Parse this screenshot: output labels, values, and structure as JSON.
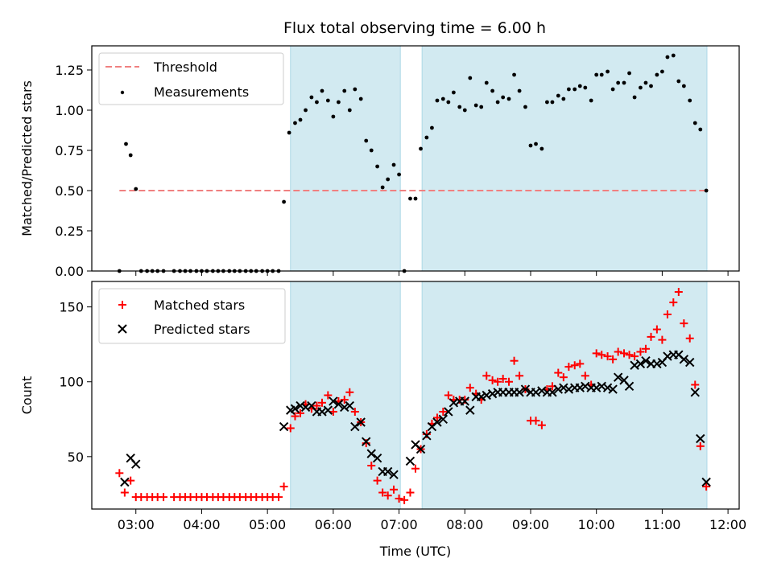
{
  "chart_data": {
    "title": "Flux total observing time = 6.00 h",
    "xlabel": "Time (UTC)",
    "x_unit": "hours UTC",
    "xlim": [
      2.33,
      12.17
    ],
    "x_ticks": [
      {
        "value": 3,
        "label": "03:00"
      },
      {
        "value": 4,
        "label": "04:00"
      },
      {
        "value": 5,
        "label": "05:00"
      },
      {
        "value": 6,
        "label": "06:00"
      },
      {
        "value": 7,
        "label": "07:00"
      },
      {
        "value": 8,
        "label": "08:00"
      },
      {
        "value": 9,
        "label": "09:00"
      },
      {
        "value": 10,
        "label": "10:00"
      },
      {
        "value": 11,
        "label": "11:00"
      },
      {
        "value": 12,
        "label": "12:00"
      }
    ],
    "shaded_spans": [
      {
        "start": 5.35,
        "end": 7.02,
        "color": "#add8e6"
      },
      {
        "start": 7.35,
        "end": 11.68,
        "color": "#add8e6"
      }
    ],
    "top": {
      "type": "scatter",
      "ylabel": "Matched/Predicted stars",
      "ylim": [
        0,
        1.4
      ],
      "y_ticks": [
        "0.00",
        "0.25",
        "0.50",
        "0.75",
        "1.00",
        "1.25"
      ],
      "legend": "top-left",
      "threshold": {
        "name": "Threshold",
        "value": 0.5,
        "x_range": [
          2.75,
          11.68
        ],
        "color": "#f08080"
      },
      "measurements": {
        "name": "Measurements",
        "color": "#000000",
        "x": [
          2.75,
          2.85,
          2.92,
          3.0,
          3.08,
          3.17,
          3.25,
          3.33,
          3.42,
          3.58,
          3.67,
          3.75,
          3.83,
          3.92,
          4.0,
          4.08,
          4.17,
          4.25,
          4.33,
          4.42,
          4.5,
          4.58,
          4.67,
          4.75,
          4.83,
          4.92,
          5.0,
          5.08,
          5.17,
          5.25,
          5.33,
          5.42,
          5.5,
          5.58,
          5.67,
          5.75,
          5.83,
          5.92,
          6.0,
          6.08,
          6.17,
          6.25,
          6.33,
          6.42,
          6.5,
          6.58,
          6.67,
          6.75,
          6.83,
          6.92,
          7.0,
          7.08,
          7.17,
          7.25,
          7.33,
          7.42,
          7.5,
          7.58,
          7.67,
          7.75,
          7.83,
          7.92,
          8.0,
          8.08,
          8.17,
          8.25,
          8.33,
          8.42,
          8.5,
          8.58,
          8.67,
          8.75,
          8.83,
          8.92,
          9.0,
          9.08,
          9.17,
          9.25,
          9.33,
          9.42,
          9.5,
          9.58,
          9.67,
          9.75,
          9.83,
          9.92,
          10.0,
          10.08,
          10.17,
          10.25,
          10.33,
          10.42,
          10.5,
          10.58,
          10.67,
          10.75,
          10.83,
          10.92,
          11.0,
          11.08,
          11.17,
          11.25,
          11.33,
          11.42,
          11.5,
          11.58,
          11.67
        ],
        "y": [
          0.0,
          0.79,
          0.72,
          0.51,
          0.0,
          0.0,
          0.0,
          0.0,
          0.0,
          0.0,
          0.0,
          0.0,
          0.0,
          0.0,
          0.0,
          0.0,
          0.0,
          0.0,
          0.0,
          0.0,
          0.0,
          0.0,
          0.0,
          0.0,
          0.0,
          0.0,
          0.0,
          0.0,
          0.0,
          0.43,
          0.86,
          0.92,
          0.94,
          1.0,
          1.08,
          1.05,
          1.12,
          1.06,
          0.96,
          1.05,
          1.12,
          1.0,
          1.13,
          1.07,
          0.81,
          0.75,
          0.65,
          0.52,
          0.57,
          0.66,
          0.6,
          0.0,
          0.45,
          0.45,
          0.76,
          0.83,
          0.89,
          1.06,
          1.07,
          1.05,
          1.11,
          1.02,
          1.0,
          1.2,
          1.03,
          1.02,
          1.17,
          1.12,
          1.05,
          1.08,
          1.07,
          1.22,
          1.12,
          1.02,
          0.78,
          0.79,
          0.76,
          1.05,
          1.05,
          1.09,
          1.07,
          1.13,
          1.13,
          1.15,
          1.14,
          1.06,
          1.22,
          1.22,
          1.24,
          1.13,
          1.17,
          1.17,
          1.23,
          1.08,
          1.14,
          1.17,
          1.15,
          1.22,
          1.24,
          1.33,
          1.34,
          1.18,
          1.15,
          1.06,
          0.92,
          0.88,
          0.5
        ]
      }
    },
    "bottom": {
      "type": "scatter",
      "ylabel": "Count",
      "ylim": [
        15,
        167
      ],
      "y_ticks": [
        50,
        100,
        150
      ],
      "legend": "top-left",
      "series": [
        {
          "name": "Matched stars",
          "marker": "plus",
          "color": "#ff0000",
          "x": [
            2.75,
            2.83,
            2.92,
            3.0,
            3.08,
            3.17,
            3.25,
            3.33,
            3.42,
            3.58,
            3.67,
            3.75,
            3.83,
            3.92,
            4.0,
            4.08,
            4.17,
            4.25,
            4.33,
            4.42,
            4.5,
            4.58,
            4.67,
            4.75,
            4.83,
            4.92,
            5.0,
            5.08,
            5.17,
            5.25,
            5.35,
            5.42,
            5.5,
            5.58,
            5.67,
            5.75,
            5.83,
            5.92,
            6.0,
            6.08,
            6.17,
            6.25,
            6.33,
            6.42,
            6.5,
            6.58,
            6.67,
            6.75,
            6.83,
            6.92,
            7.0,
            7.08,
            7.17,
            7.25,
            7.33,
            7.42,
            7.5,
            7.58,
            7.67,
            7.75,
            7.83,
            7.92,
            8.0,
            8.08,
            8.17,
            8.25,
            8.33,
            8.42,
            8.5,
            8.58,
            8.67,
            8.75,
            8.83,
            8.92,
            9.0,
            9.08,
            9.17,
            9.25,
            9.33,
            9.42,
            9.5,
            9.58,
            9.67,
            9.75,
            9.83,
            9.92,
            10.0,
            10.08,
            10.17,
            10.25,
            10.33,
            10.42,
            10.5,
            10.58,
            10.67,
            10.75,
            10.83,
            10.92,
            11.0,
            11.08,
            11.17,
            11.25,
            11.33,
            11.42,
            11.5,
            11.58,
            11.67
          ],
          "y": [
            39,
            26,
            34,
            23,
            23,
            23,
            23,
            23,
            23,
            23,
            23,
            23,
            23,
            23,
            23,
            23,
            23,
            23,
            23,
            23,
            23,
            23,
            23,
            23,
            23,
            23,
            23,
            23,
            23,
            30,
            69,
            77,
            79,
            85,
            82,
            84,
            86,
            91,
            80,
            87,
            88,
            93,
            80,
            73,
            59,
            44,
            34,
            26,
            24,
            28,
            22,
            21,
            26,
            42,
            55,
            65,
            72,
            76,
            80,
            91,
            88,
            88,
            88,
            96,
            92,
            88,
            104,
            101,
            100,
            102,
            100,
            114,
            104,
            95,
            74,
            74,
            71,
            95,
            97,
            106,
            103,
            110,
            111,
            112,
            104,
            98,
            119,
            118,
            117,
            115,
            120,
            119,
            118,
            117,
            120,
            122,
            130,
            135,
            128,
            145,
            153,
            160,
            139,
            129,
            98,
            57,
            30
          ]
        },
        {
          "name": "Predicted stars",
          "marker": "x",
          "color": "#000000",
          "x": [
            2.83,
            2.92,
            3.0,
            5.25,
            5.35,
            5.42,
            5.5,
            5.58,
            5.67,
            5.75,
            5.83,
            5.92,
            6.0,
            6.08,
            6.17,
            6.25,
            6.33,
            6.42,
            6.5,
            6.58,
            6.67,
            6.75,
            6.83,
            6.92,
            7.17,
            7.25,
            7.33,
            7.42,
            7.5,
            7.58,
            7.67,
            7.75,
            7.83,
            7.92,
            8.0,
            8.08,
            8.17,
            8.25,
            8.33,
            8.42,
            8.5,
            8.58,
            8.67,
            8.75,
            8.83,
            8.92,
            9.0,
            9.08,
            9.17,
            9.25,
            9.33,
            9.42,
            9.5,
            9.58,
            9.67,
            9.75,
            9.83,
            9.92,
            10.0,
            10.08,
            10.17,
            10.25,
            10.33,
            10.42,
            10.5,
            10.58,
            10.67,
            10.75,
            10.83,
            10.92,
            11.0,
            11.08,
            11.17,
            11.25,
            11.33,
            11.42,
            11.5,
            11.58,
            11.67
          ],
          "y": [
            33,
            49,
            45,
            70,
            81,
            82,
            84,
            83,
            84,
            80,
            80,
            81,
            87,
            85,
            83,
            84,
            70,
            73,
            60,
            52,
            49,
            40,
            40,
            38,
            47,
            58,
            55,
            64,
            70,
            73,
            75,
            80,
            86,
            87,
            87,
            81,
            90,
            90,
            91,
            92,
            93,
            93,
            93,
            93,
            93,
            95,
            93,
            93,
            94,
            93,
            93,
            95,
            96,
            95,
            96,
            96,
            97,
            96,
            96,
            97,
            96,
            95,
            103,
            101,
            97,
            111,
            112,
            114,
            112,
            112,
            113,
            117,
            118,
            118,
            115,
            113,
            93,
            62,
            33
          ]
        }
      ]
    }
  }
}
